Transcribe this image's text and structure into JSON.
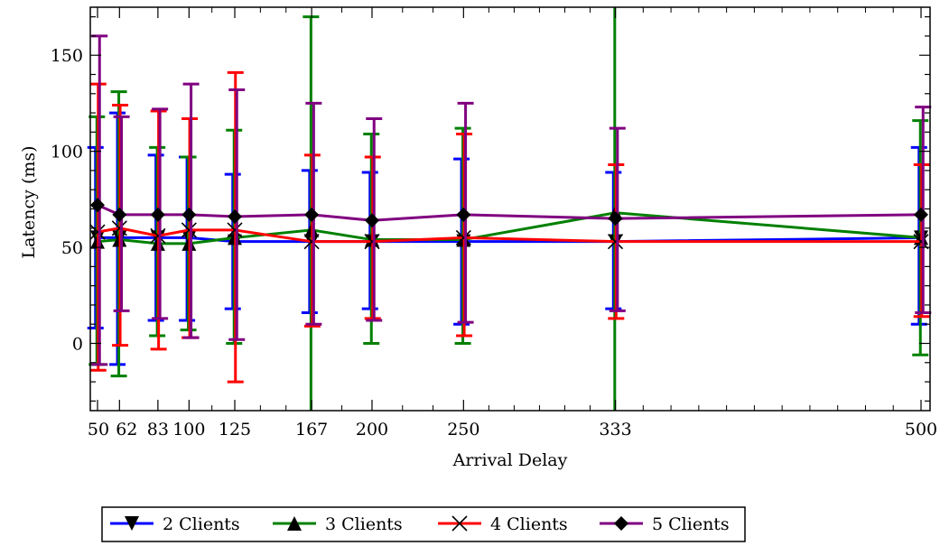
{
  "chart_data": {
    "type": "line",
    "title": "",
    "xlabel": "Arrival Delay",
    "ylabel": "Latency (ms)",
    "x": [
      50,
      62,
      83,
      100,
      125,
      167,
      200,
      250,
      333,
      500
    ],
    "x_tick_labels": [
      "50",
      "62",
      "83",
      "100",
      "125",
      "167",
      "200",
      "250",
      "333",
      "500"
    ],
    "y_ticks": [
      0,
      50,
      100,
      150
    ],
    "ylim": [
      -35,
      175
    ],
    "grid": false,
    "legend_position": "bottom",
    "series": [
      {
        "name": "2 Clients",
        "color": "#0000ff",
        "marker": "triangle-down",
        "values": [
          55,
          55,
          55,
          55,
          53,
          53,
          53,
          53,
          53,
          55
        ],
        "error_low": [
          8,
          -11,
          12,
          12,
          18,
          16,
          18,
          10,
          18,
          10
        ],
        "error_high": [
          102,
          120,
          98,
          97,
          88,
          90,
          89,
          96,
          89,
          102
        ]
      },
      {
        "name": "3 Clients",
        "color": "#008000",
        "marker": "triangle-up",
        "values": [
          53,
          54,
          52,
          52,
          55,
          59,
          54,
          54,
          68,
          55
        ],
        "error_low": [
          -11,
          -17,
          4,
          7,
          0,
          -40,
          0,
          0,
          -40,
          -6
        ],
        "error_high": [
          118,
          131,
          102,
          97,
          111,
          170,
          109,
          112,
          180,
          116
        ]
      },
      {
        "name": "4 Clients",
        "color": "#ff0000",
        "marker": "x",
        "values": [
          58,
          60,
          56,
          59,
          59,
          53,
          53,
          55,
          53,
          53
        ],
        "error_low": [
          -14,
          -1,
          -3,
          3,
          -20,
          9,
          13,
          4,
          13,
          14
        ],
        "error_high": [
          135,
          124,
          121,
          117,
          141,
          98,
          97,
          109,
          93,
          93
        ]
      },
      {
        "name": "5 Clients",
        "color": "#800080",
        "marker": "diamond",
        "values": [
          72,
          67,
          67,
          67,
          66,
          67,
          64,
          67,
          65,
          67
        ],
        "error_low": [
          -11,
          17,
          13,
          3,
          2,
          10,
          12,
          11,
          17,
          16
        ],
        "error_high": [
          160,
          118,
          122,
          135,
          132,
          125,
          117,
          125,
          112,
          123
        ]
      }
    ]
  }
}
